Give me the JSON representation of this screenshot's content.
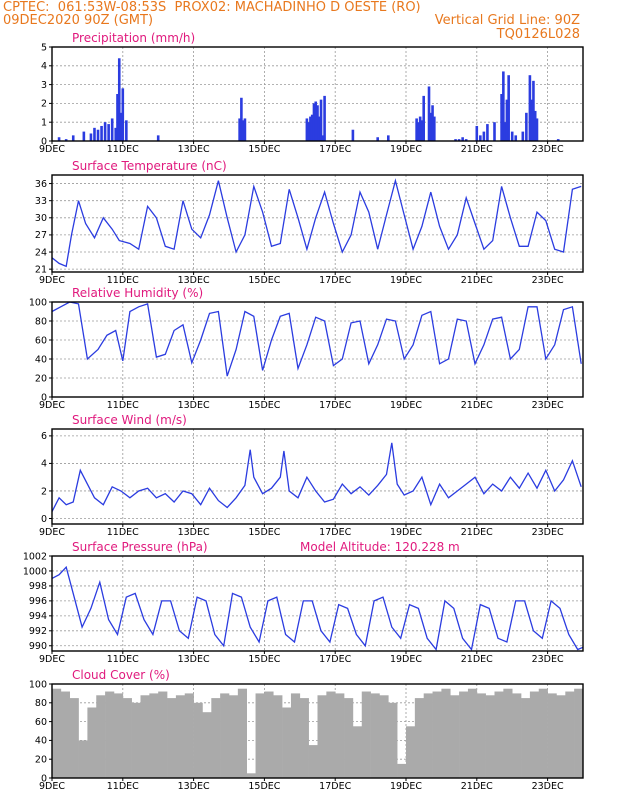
{
  "header": {
    "line1": "CPTEC:  061:53W-08:53S  PROX02: MACHADINHO D OESTE (RO)",
    "line2_left": "09DEC2020 90Z (GMT)",
    "line2_right": "Vertical Grid Line: 90Z",
    "line3_right": "TQ0126L028"
  },
  "colors": {
    "header": "#e8781e",
    "title": "#e0197d",
    "line": "#2b3ce0",
    "bar": "#2b3ce0",
    "cloud": "#aaaaaa"
  },
  "x_axis": {
    "start_day": 9,
    "end_day": 24,
    "tick_labels": [
      "9DEC",
      "11DEC",
      "13DEC",
      "15DEC",
      "17DEC",
      "19DEC",
      "21DEC",
      "23DEC"
    ],
    "tick_days": [
      9,
      11,
      13,
      15,
      17,
      19,
      21,
      23
    ]
  },
  "chart_data": [
    {
      "type": "bar",
      "title": "Precipitation (mm/h)",
      "ylim": [
        0,
        5
      ],
      "yticks": [
        0,
        1,
        2,
        3,
        4,
        5
      ],
      "x": [
        9.2,
        9.4,
        9.6,
        9.9,
        10.1,
        10.2,
        10.3,
        10.4,
        10.5,
        10.6,
        10.7,
        10.8,
        10.85,
        10.9,
        10.95,
        11.0,
        11.1,
        12.0,
        14.3,
        14.35,
        14.4,
        14.45,
        16.2,
        16.25,
        16.3,
        16.35,
        16.4,
        16.45,
        16.5,
        16.55,
        16.6,
        16.65,
        16.7,
        17.5,
        18.2,
        18.5,
        19.3,
        19.35,
        19.4,
        19.45,
        19.5,
        19.65,
        19.7,
        19.75,
        19.8,
        20.4,
        20.5,
        20.6,
        20.7,
        21.0,
        21.1,
        21.2,
        21.3,
        21.5,
        21.7,
        21.75,
        21.8,
        21.85,
        21.9,
        22.0,
        22.1,
        22.3,
        22.4,
        22.5,
        22.55,
        22.6,
        22.65,
        22.7,
        23.3
      ],
      "values": [
        0.2,
        0.1,
        0.3,
        0.5,
        0.4,
        0.7,
        0.6,
        0.8,
        1.0,
        0.9,
        1.2,
        0.7,
        2.5,
        4.4,
        1.5,
        2.8,
        1.1,
        0.3,
        1.2,
        2.3,
        1.1,
        1.2,
        1.2,
        1.0,
        1.3,
        1.4,
        2.0,
        2.1,
        1.9,
        1.3,
        2.2,
        0.3,
        2.4,
        0.6,
        0.2,
        0.3,
        1.2,
        1.0,
        1.3,
        1.1,
        2.4,
        2.9,
        1.5,
        1.9,
        1.3,
        0.1,
        0.1,
        0.2,
        0.1,
        0.8,
        0.3,
        0.5,
        0.9,
        1.0,
        2.5,
        3.7,
        1.0,
        2.2,
        3.5,
        0.5,
        0.3,
        0.5,
        1.5,
        3.5,
        2.2,
        3.2,
        1.6,
        1.2,
        0.1
      ]
    },
    {
      "type": "line",
      "title": "Surface Temperature (nC)",
      "ylim": [
        20.5,
        37.5
      ],
      "yticks": [
        21,
        24,
        27,
        30,
        33,
        36
      ],
      "x": [
        9.0,
        9.2,
        9.4,
        9.55,
        9.75,
        9.95,
        10.2,
        10.45,
        10.7,
        10.9,
        11.2,
        11.45,
        11.7,
        11.95,
        12.2,
        12.45,
        12.7,
        12.95,
        13.2,
        13.45,
        13.7,
        13.95,
        14.2,
        14.45,
        14.7,
        14.95,
        15.2,
        15.45,
        15.7,
        15.95,
        16.2,
        16.45,
        16.7,
        16.95,
        17.2,
        17.45,
        17.7,
        17.95,
        18.2,
        18.45,
        18.7,
        18.95,
        19.2,
        19.45,
        19.7,
        19.95,
        20.2,
        20.45,
        20.7,
        20.95,
        21.2,
        21.45,
        21.7,
        21.95,
        22.2,
        22.45,
        22.7,
        22.95,
        23.2,
        23.45,
        23.7,
        23.95
      ],
      "values": [
        23,
        22,
        21.5,
        27,
        33,
        29,
        26.5,
        30,
        28,
        26,
        25.5,
        24.5,
        32,
        30,
        25,
        24.5,
        33,
        28,
        26.5,
        30.5,
        36.5,
        30,
        24,
        27,
        35.5,
        31,
        25,
        25.5,
        35,
        30,
        24.5,
        30,
        34.5,
        29,
        24,
        27,
        34.5,
        31,
        24.5,
        30.5,
        36.5,
        30.5,
        24.5,
        28.5,
        34.5,
        28.5,
        24.5,
        27,
        33.5,
        29,
        24.5,
        26,
        35.5,
        30,
        25,
        25,
        31,
        29.5,
        24.5,
        24,
        35,
        35.5
      ]
    },
    {
      "type": "line",
      "title": "Relative Humidity (%)",
      "ylim": [
        0,
        100
      ],
      "yticks": [
        0,
        20,
        40,
        60,
        80,
        100
      ],
      "x": [
        9.0,
        9.3,
        9.5,
        9.75,
        10.0,
        10.3,
        10.55,
        10.8,
        11.0,
        11.2,
        11.45,
        11.7,
        11.95,
        12.2,
        12.45,
        12.7,
        12.95,
        13.2,
        13.45,
        13.7,
        13.95,
        14.2,
        14.45,
        14.7,
        14.95,
        15.2,
        15.45,
        15.7,
        15.95,
        16.2,
        16.45,
        16.7,
        16.95,
        17.2,
        17.45,
        17.7,
        17.95,
        18.2,
        18.45,
        18.7,
        18.95,
        19.2,
        19.45,
        19.7,
        19.95,
        20.2,
        20.45,
        20.7,
        20.95,
        21.2,
        21.45,
        21.7,
        21.95,
        22.2,
        22.45,
        22.7,
        22.95,
        23.2,
        23.45,
        23.7,
        23.95
      ],
      "values": [
        90,
        96,
        100,
        98,
        40,
        50,
        65,
        70,
        38,
        90,
        95,
        98,
        42,
        45,
        70,
        76,
        36,
        60,
        88,
        90,
        22,
        50,
        90,
        85,
        28,
        60,
        85,
        88,
        30,
        55,
        84,
        80,
        33,
        40,
        78,
        80,
        35,
        55,
        82,
        80,
        40,
        55,
        86,
        90,
        35,
        40,
        82,
        80,
        35,
        55,
        82,
        84,
        40,
        50,
        95,
        95,
        40,
        55,
        92,
        95,
        35
      ]
    },
    {
      "type": "line",
      "title": "Surface Wind (m/s)",
      "ylim": [
        -0.4,
        6.5
      ],
      "yticks": [
        0,
        2,
        4,
        6
      ],
      "x": [
        9.0,
        9.2,
        9.4,
        9.6,
        9.8,
        10.0,
        10.2,
        10.45,
        10.7,
        10.95,
        11.2,
        11.45,
        11.7,
        11.95,
        12.2,
        12.45,
        12.7,
        12.95,
        13.2,
        13.45,
        13.7,
        13.95,
        14.2,
        14.45,
        14.6,
        14.7,
        14.95,
        15.2,
        15.45,
        15.55,
        15.7,
        15.95,
        16.2,
        16.45,
        16.7,
        16.95,
        17.2,
        17.45,
        17.7,
        17.95,
        18.2,
        18.45,
        18.6,
        18.75,
        18.95,
        19.2,
        19.45,
        19.7,
        19.95,
        20.2,
        20.45,
        20.7,
        20.95,
        21.2,
        21.45,
        21.7,
        21.95,
        22.2,
        22.45,
        22.7,
        22.95,
        23.2,
        23.45,
        23.7,
        23.95
      ],
      "values": [
        0.5,
        1.5,
        1.0,
        1.2,
        3.5,
        2.5,
        1.5,
        1.0,
        2.3,
        2.0,
        1.5,
        2.0,
        2.2,
        1.5,
        1.8,
        1.2,
        2.0,
        1.8,
        1.0,
        2.2,
        1.3,
        0.8,
        1.5,
        2.4,
        5.0,
        3.0,
        1.8,
        2.2,
        3.0,
        4.9,
        2.0,
        1.5,
        3.0,
        2.0,
        1.2,
        1.4,
        2.5,
        1.8,
        2.3,
        1.7,
        2.4,
        3.2,
        5.5,
        2.5,
        1.7,
        2.0,
        3.0,
        1.0,
        2.5,
        1.5,
        2.0,
        2.5,
        3.0,
        1.8,
        2.5,
        2.0,
        3.0,
        2.2,
        3.3,
        2.2,
        3.5,
        2.0,
        2.8,
        4.2,
        2.3
      ]
    },
    {
      "type": "line",
      "title": "Surface Pressure (hPa)",
      "annotation": "Model Altitude: 120.228 m",
      "ylim": [
        989.3,
        1002
      ],
      "yticks": [
        990,
        992,
        994,
        996,
        998,
        1000,
        1002
      ],
      "x": [
        9.0,
        9.2,
        9.4,
        9.6,
        9.85,
        10.1,
        10.35,
        10.6,
        10.85,
        11.1,
        11.35,
        11.6,
        11.85,
        12.1,
        12.35,
        12.6,
        12.85,
        13.1,
        13.35,
        13.6,
        13.85,
        14.1,
        14.35,
        14.6,
        14.85,
        15.1,
        15.35,
        15.6,
        15.85,
        16.1,
        16.35,
        16.6,
        16.85,
        17.1,
        17.35,
        17.6,
        17.85,
        18.1,
        18.35,
        18.6,
        18.85,
        19.1,
        19.35,
        19.6,
        19.85,
        20.1,
        20.35,
        20.6,
        20.85,
        21.1,
        21.35,
        21.6,
        21.85,
        22.1,
        22.35,
        22.6,
        22.85,
        23.1,
        23.35,
        23.6,
        23.85,
        24.0
      ],
      "values": [
        999,
        999.5,
        1000.5,
        997,
        992.5,
        995,
        998.5,
        993.5,
        991.5,
        996.5,
        997,
        993.5,
        991.5,
        996,
        996,
        992,
        991,
        996.5,
        996,
        991.5,
        990,
        997,
        996.5,
        992.5,
        990.5,
        996,
        996.5,
        991.5,
        990.5,
        996,
        996,
        992,
        990.5,
        995.5,
        995,
        991.5,
        990,
        996,
        996.5,
        992.5,
        991,
        995.5,
        995,
        991,
        989.5,
        996,
        995,
        991,
        989.5,
        995.5,
        995,
        991,
        990.5,
        996,
        996,
        992,
        991,
        996,
        995,
        991.5,
        989.5,
        989.8
      ]
    },
    {
      "type": "bar",
      "title": "Cloud Cover (%)",
      "ylim": [
        0,
        100
      ],
      "yticks": [
        0,
        20,
        40,
        60,
        80,
        100
      ],
      "x": [
        9.0,
        9.25,
        9.5,
        9.75,
        10.0,
        10.25,
        10.5,
        10.75,
        11.0,
        11.25,
        11.5,
        11.75,
        12.0,
        12.25,
        12.5,
        12.75,
        13.0,
        13.25,
        13.5,
        13.75,
        14.0,
        14.25,
        14.5,
        14.75,
        15.0,
        15.25,
        15.5,
        15.75,
        16.0,
        16.25,
        16.5,
        16.75,
        17.0,
        17.25,
        17.5,
        17.75,
        18.0,
        18.25,
        18.5,
        18.75,
        19.0,
        19.25,
        19.5,
        19.75,
        20.0,
        20.25,
        20.5,
        20.75,
        21.0,
        21.25,
        21.5,
        21.75,
        22.0,
        22.25,
        22.5,
        22.75,
        23.0,
        23.25,
        23.5,
        23.75
      ],
      "values": [
        95,
        92,
        85,
        40,
        75,
        88,
        92,
        90,
        85,
        80,
        88,
        90,
        92,
        85,
        88,
        90,
        80,
        70,
        85,
        90,
        88,
        95,
        5,
        90,
        92,
        88,
        75,
        90,
        85,
        35,
        88,
        92,
        90,
        85,
        55,
        92,
        90,
        88,
        80,
        15,
        55,
        85,
        90,
        92,
        95,
        88,
        92,
        95,
        90,
        88,
        92,
        95,
        90,
        85,
        92,
        95,
        90,
        88,
        92,
        95
      ]
    }
  ]
}
